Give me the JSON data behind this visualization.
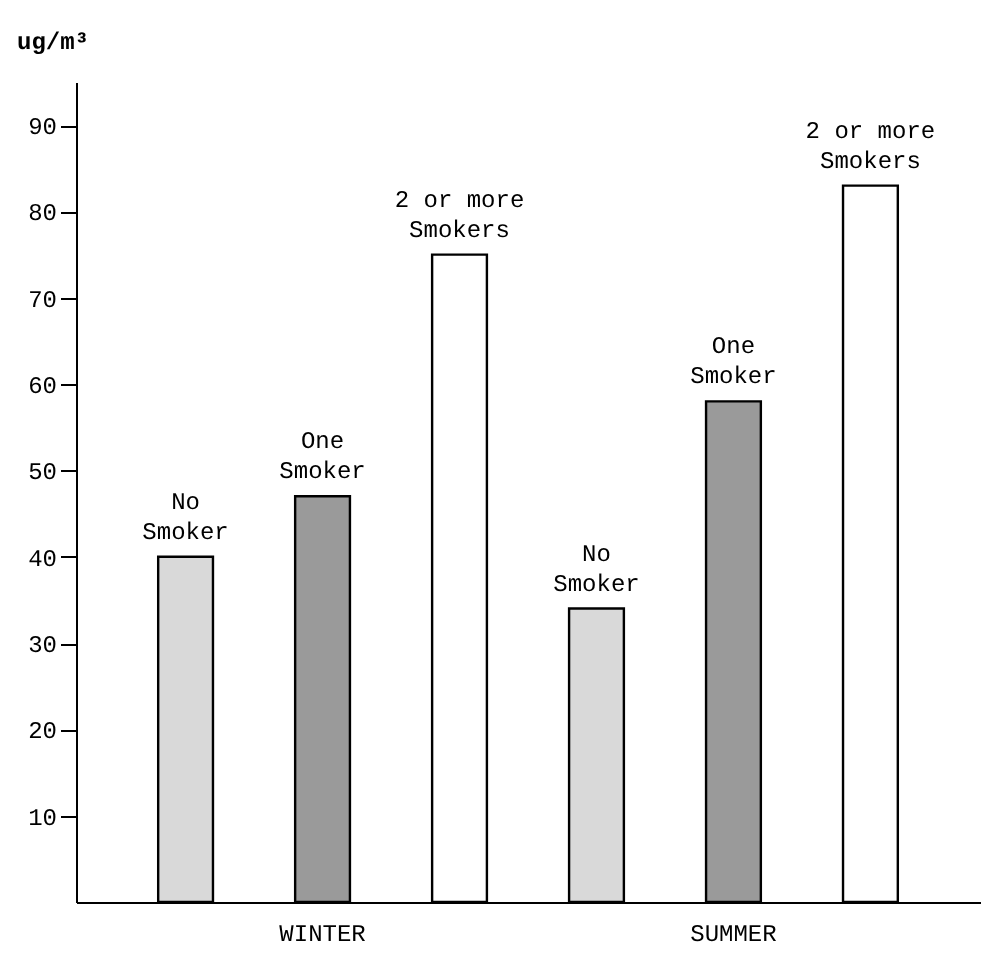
{
  "chart_data": {
    "type": "bar",
    "ylabel": "ug/m³",
    "categories": [
      "WINTER",
      "SUMMER"
    ],
    "series": [
      {
        "name": "No Smoker",
        "color": "#d9d9d9",
        "values": [
          40,
          34
        ]
      },
      {
        "name": "One Smoker",
        "color": "#9a9a9a",
        "values": [
          47,
          58
        ]
      },
      {
        "name": "2 or more Smokers",
        "color": "#ffffff",
        "values": [
          75,
          83
        ]
      }
    ],
    "ylim": [
      0,
      95
    ],
    "yticks": [
      10,
      20,
      30,
      40,
      50,
      60,
      70,
      80,
      90
    ],
    "grid": false,
    "legend": false
  }
}
